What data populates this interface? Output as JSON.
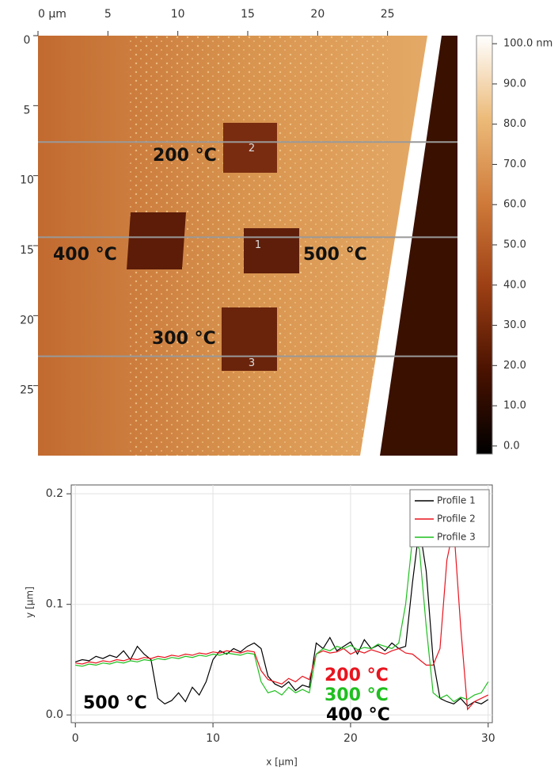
{
  "chart_data": [
    {
      "type": "heatmap",
      "xticks": [
        {
          "value": 0,
          "label": "0 µm"
        },
        5,
        10,
        15,
        20,
        25
      ],
      "yticks": [
        0,
        5,
        10,
        15,
        20,
        25
      ],
      "xlim": [
        0,
        30
      ],
      "ylim": [
        0,
        30
      ],
      "colorbar": {
        "clim": [
          -2,
          102
        ],
        "colors": [
          "#000000",
          "#4a1200",
          "#9c3f14",
          "#cf7a3a",
          "#ecba78",
          "#ffffff"
        ],
        "ticks": [
          {
            "value": 100,
            "label": "100.0 nm"
          },
          {
            "value": 90,
            "label": "90.0"
          },
          {
            "value": 80,
            "label": "80.0"
          },
          {
            "value": 70,
            "label": "70.0"
          },
          {
            "value": 60,
            "label": "60.0"
          },
          {
            "value": 50,
            "label": "50.0"
          },
          {
            "value": 40,
            "label": "40.0"
          },
          {
            "value": 30,
            "label": "30.0"
          },
          {
            "value": 20,
            "label": "20.0"
          },
          {
            "value": 10,
            "label": "10.0"
          },
          {
            "value": 0,
            "label": "0.0"
          }
        ]
      },
      "profiles": [
        {
          "label": "1",
          "y": 14.4
        },
        {
          "label": "2",
          "y": 7.6
        },
        {
          "label": "3",
          "y": 22.9
        }
      ],
      "annotations": [
        "200 °C",
        "400 °C",
        "500 °C",
        "300 °C"
      ]
    },
    {
      "type": "line",
      "x": [
        0,
        0.5,
        1,
        1.5,
        2,
        2.5,
        3,
        3.5,
        4,
        4.5,
        5,
        5.5,
        6,
        6.5,
        7,
        7.5,
        8,
        8.5,
        9,
        9.5,
        10,
        10.5,
        11,
        11.5,
        12,
        12.5,
        13,
        13.5,
        14,
        14.5,
        15,
        15.5,
        16,
        16.5,
        17,
        17.5,
        18,
        18.5,
        19,
        19.5,
        20,
        20.5,
        21,
        21.5,
        22,
        22.5,
        23,
        23.5,
        24,
        24.5,
        25,
        25.5,
        26,
        26.5,
        27,
        27.5,
        28,
        28.5,
        29,
        29.5,
        30
      ],
      "series": [
        {
          "name": "Profile 1",
          "color": "#000000",
          "values": [
            0.048,
            0.05,
            0.049,
            0.053,
            0.051,
            0.054,
            0.052,
            0.058,
            0.05,
            0.062,
            0.055,
            0.05,
            0.015,
            0.01,
            0.013,
            0.02,
            0.012,
            0.025,
            0.018,
            0.03,
            0.05,
            0.058,
            0.055,
            0.06,
            0.057,
            0.062,
            0.065,
            0.06,
            0.035,
            0.028,
            0.025,
            0.03,
            0.022,
            0.027,
            0.025,
            0.065,
            0.06,
            0.07,
            0.058,
            0.062,
            0.066,
            0.055,
            0.068,
            0.06,
            0.063,
            0.058,
            0.065,
            0.06,
            0.062,
            0.12,
            0.17,
            0.13,
            0.05,
            0.015,
            0.012,
            0.01,
            0.015,
            0.008,
            0.012,
            0.01,
            0.014
          ]
        },
        {
          "name": "Profile 2",
          "color": "#e8141e",
          "values": [
            0.047,
            0.046,
            0.048,
            0.047,
            0.049,
            0.048,
            0.05,
            0.049,
            0.051,
            0.05,
            0.052,
            0.051,
            0.053,
            0.052,
            0.054,
            0.053,
            0.055,
            0.054,
            0.056,
            0.055,
            0.057,
            0.056,
            0.058,
            0.057,
            0.056,
            0.058,
            0.057,
            0.04,
            0.032,
            0.03,
            0.028,
            0.033,
            0.03,
            0.035,
            0.032,
            0.055,
            0.058,
            0.056,
            0.057,
            0.06,
            0.055,
            0.058,
            0.056,
            0.059,
            0.057,
            0.055,
            0.058,
            0.06,
            0.056,
            0.055,
            0.05,
            0.045,
            0.045,
            0.06,
            0.14,
            0.17,
            0.08,
            0.005,
            0.012,
            0.015,
            0.018
          ]
        },
        {
          "name": "Profile 3",
          "color": "#1fbf1f",
          "values": [
            0.045,
            0.044,
            0.046,
            0.045,
            0.047,
            0.046,
            0.048,
            0.047,
            0.049,
            0.048,
            0.05,
            0.049,
            0.051,
            0.05,
            0.052,
            0.051,
            0.053,
            0.052,
            0.054,
            0.053,
            0.055,
            0.054,
            0.056,
            0.055,
            0.054,
            0.056,
            0.055,
            0.03,
            0.02,
            0.022,
            0.018,
            0.025,
            0.02,
            0.023,
            0.02,
            0.055,
            0.06,
            0.058,
            0.062,
            0.06,
            0.063,
            0.059,
            0.061,
            0.06,
            0.064,
            0.062,
            0.06,
            0.065,
            0.1,
            0.16,
            0.15,
            0.08,
            0.02,
            0.015,
            0.018,
            0.012,
            0.016,
            0.014,
            0.018,
            0.02,
            0.03
          ]
        }
      ],
      "xlim": [
        -0.3,
        30.3
      ],
      "xticks": [
        0,
        10,
        20,
        30
      ],
      "ylim": [
        -0.007,
        0.208
      ],
      "yticks": [
        {
          "value": 0,
          "label": "0.0"
        },
        0.1,
        0.2
      ],
      "xlabel": "x [µm]",
      "ylabel": "y [µm]",
      "grid": true,
      "legend": "top-right",
      "annotations": [
        {
          "text": "500 °C",
          "color": "#000000"
        },
        {
          "text": "200 °C",
          "color": "#e8141e"
        },
        {
          "text": "300 °C",
          "color": "#1fbf1f"
        },
        {
          "text": "400 °C",
          "color": "#000000"
        }
      ]
    }
  ]
}
